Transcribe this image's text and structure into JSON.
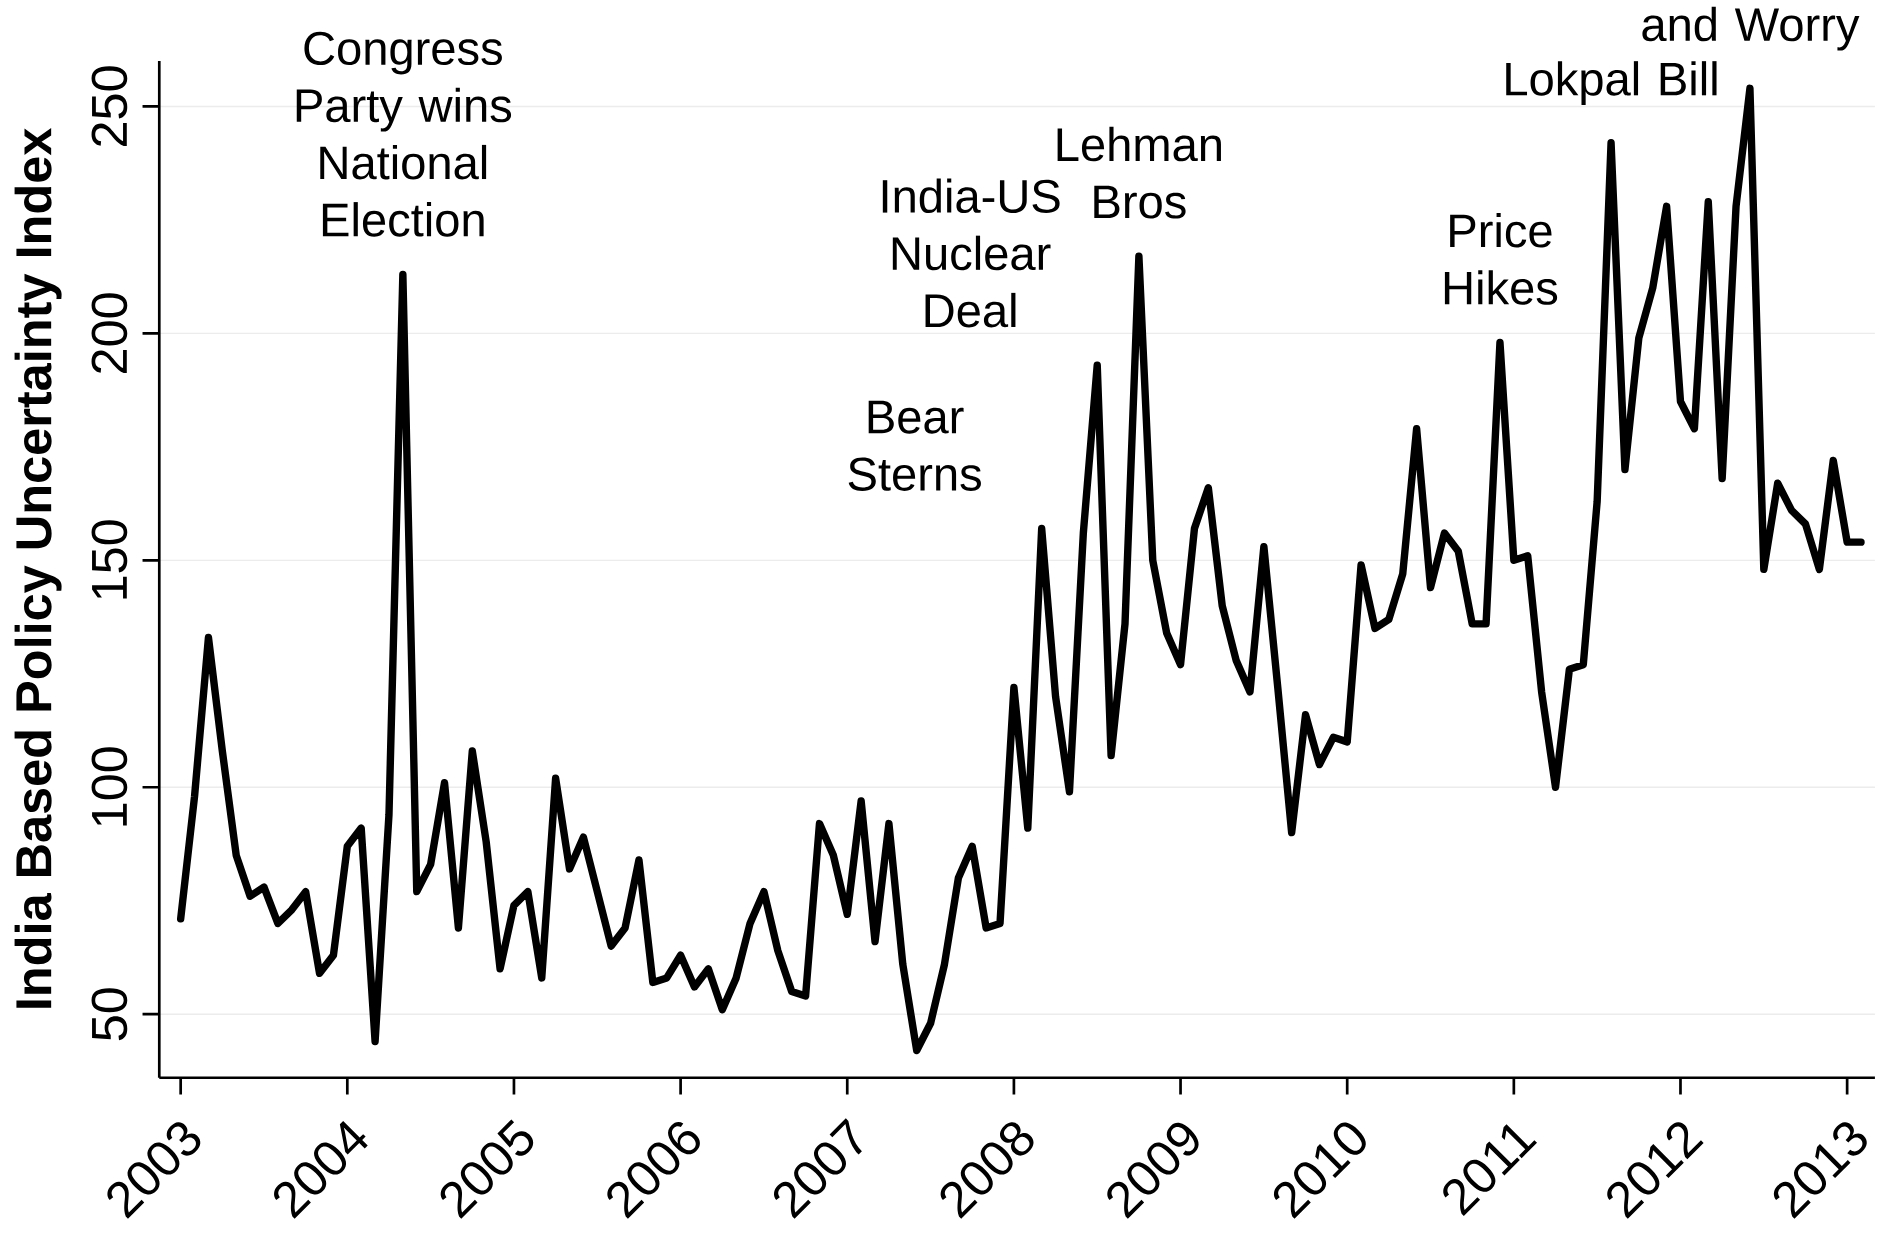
{
  "chart_data": {
    "type": "line",
    "ylabel": "India Based Policy Uncertainty Index",
    "x": [
      "2003-01",
      "2003-02",
      "2003-03",
      "2003-04",
      "2003-05",
      "2003-06",
      "2003-07",
      "2003-08",
      "2003-09",
      "2003-10",
      "2003-11",
      "2003-12",
      "2004-01",
      "2004-02",
      "2004-03",
      "2004-04",
      "2004-05",
      "2004-06",
      "2004-07",
      "2004-08",
      "2004-09",
      "2004-10",
      "2004-11",
      "2004-12",
      "2005-01",
      "2005-02",
      "2005-03",
      "2005-04",
      "2005-05",
      "2005-06",
      "2005-07",
      "2005-08",
      "2005-09",
      "2005-10",
      "2005-11",
      "2005-12",
      "2006-01",
      "2006-02",
      "2006-03",
      "2006-04",
      "2006-05",
      "2006-06",
      "2006-07",
      "2006-08",
      "2006-09",
      "2006-10",
      "2006-11",
      "2006-12",
      "2007-01",
      "2007-02",
      "2007-03",
      "2007-04",
      "2007-05",
      "2007-06",
      "2007-07",
      "2007-08",
      "2007-09",
      "2007-10",
      "2007-11",
      "2007-12",
      "2008-01",
      "2008-02",
      "2008-03",
      "2008-04",
      "2008-05",
      "2008-06",
      "2008-07",
      "2008-08",
      "2008-09",
      "2008-10",
      "2008-11",
      "2008-12",
      "2009-01",
      "2009-02",
      "2009-03",
      "2009-04",
      "2009-05",
      "2009-06",
      "2009-07",
      "2009-08",
      "2009-09",
      "2009-10",
      "2009-11",
      "2009-12",
      "2010-01",
      "2010-02",
      "2010-03",
      "2010-04",
      "2010-05",
      "2010-06",
      "2010-07",
      "2010-08",
      "2010-09",
      "2010-10",
      "2010-11",
      "2010-12",
      "2011-01",
      "2011-02",
      "2011-03",
      "2011-04",
      "2011-05",
      "2011-06",
      "2011-07",
      "2011-08",
      "2011-09",
      "2011-10",
      "2011-11",
      "2011-12",
      "2012-01",
      "2012-02",
      "2012-03",
      "2012-04",
      "2012-05",
      "2012-06",
      "2012-07",
      "2012-08",
      "2012-09",
      "2012-10",
      "2012-11",
      "2012-12",
      "2013-01",
      "2013-02"
    ],
    "values": [
      71,
      98,
      133,
      108,
      85,
      76,
      78,
      70,
      73,
      77,
      59,
      63,
      87,
      91,
      44,
      94,
      213,
      77,
      83,
      101,
      69,
      108,
      88,
      60,
      74,
      77,
      58,
      102,
      82,
      89,
      77,
      65,
      69,
      84,
      57,
      58,
      63,
      56,
      60,
      51,
      58,
      70,
      77,
      64,
      55,
      54,
      92,
      85,
      72,
      97,
      66,
      92,
      61,
      42,
      48,
      61,
      80,
      87,
      69,
      70,
      122,
      91,
      157,
      120,
      99,
      156,
      193,
      107,
      136,
      217,
      150,
      134,
      127,
      157,
      166,
      140,
      128,
      121,
      153,
      122,
      90,
      116,
      105,
      111,
      110,
      149,
      135,
      137,
      147,
      179,
      144,
      156,
      152,
      136,
      136,
      198,
      150,
      151,
      121,
      100,
      126,
      127,
      163,
      242,
      170,
      199,
      210,
      228,
      185,
      179,
      229,
      168,
      228,
      254,
      148,
      167,
      161,
      158,
      148,
      172,
      154,
      154
    ],
    "color": "#000000",
    "xlim": [
      "2002-11-15",
      "2013-03-01"
    ],
    "xticks": [
      "2003",
      "2004",
      "2005",
      "2006",
      "2007",
      "2008",
      "2009",
      "2010",
      "2011",
      "2012",
      "2013"
    ],
    "ylim": [
      36,
      260
    ],
    "yticks": [
      50,
      100,
      150,
      200,
      250
    ],
    "grid": "y",
    "marker": "none",
    "line_style": "solid",
    "annotations": [
      {
        "text": "Congress Party wins National Election",
        "x": "2004-05",
        "y": 213
      },
      {
        "text": "Bear Sterns",
        "x": "2008-03",
        "y": 157
      },
      {
        "text": "India-US Nuclear Deal",
        "x": "2008-07",
        "y": 193
      },
      {
        "text": "Lehman Bros",
        "x": "2008-10",
        "y": 217
      },
      {
        "text": "Price Hikes",
        "x": "2010-12",
        "y": 198
      },
      {
        "text": "Lokpal Bill",
        "x": "2011-08",
        "y": 242
      },
      {
        "text": "and Worry",
        "x": "2012-06",
        "y": 254
      }
    ]
  }
}
